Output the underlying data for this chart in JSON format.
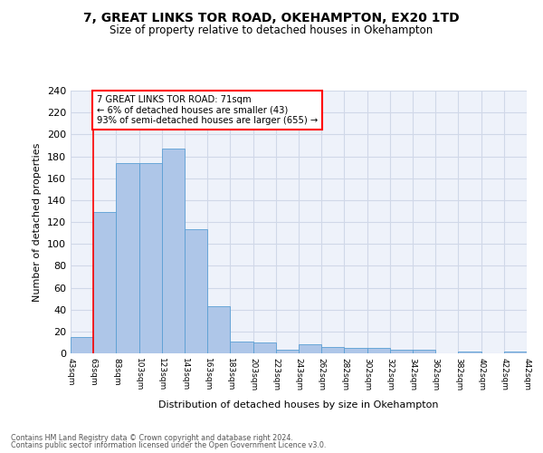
{
  "title": "7, GREAT LINKS TOR ROAD, OKEHAMPTON, EX20 1TD",
  "subtitle": "Size of property relative to detached houses in Okehampton",
  "xlabel": "Distribution of detached houses by size in Okehampton",
  "ylabel": "Number of detached properties",
  "footnote1": "Contains HM Land Registry data © Crown copyright and database right 2024.",
  "footnote2": "Contains public sector information licensed under the Open Government Licence v3.0.",
  "annotation_line1": "7 GREAT LINKS TOR ROAD: 71sqm",
  "annotation_line2": "← 6% of detached houses are smaller (43)",
  "annotation_line3": "93% of semi-detached houses are larger (655) →",
  "bar_values": [
    15,
    129,
    174,
    174,
    187,
    113,
    43,
    11,
    10,
    3,
    8,
    6,
    5,
    5,
    3,
    3,
    0,
    2,
    0,
    2
  ],
  "bin_labels": [
    "43sqm",
    "63sqm",
    "83sqm",
    "103sqm",
    "123sqm",
    "143sqm",
    "163sqm",
    "183sqm",
    "203sqm",
    "223sqm",
    "243sqm",
    "262sqm",
    "282sqm",
    "302sqm",
    "322sqm",
    "342sqm",
    "362sqm",
    "382sqm",
    "402sqm",
    "422sqm",
    "442sqm"
  ],
  "bar_color": "#aec6e8",
  "bar_edge_color": "#5a9fd4",
  "grid_color": "#d0d8e8",
  "background_color": "#eef2fa",
  "red_line_x": 1,
  "ylim": [
    0,
    240
  ],
  "yticks": [
    0,
    20,
    40,
    60,
    80,
    100,
    120,
    140,
    160,
    180,
    200,
    220,
    240
  ]
}
